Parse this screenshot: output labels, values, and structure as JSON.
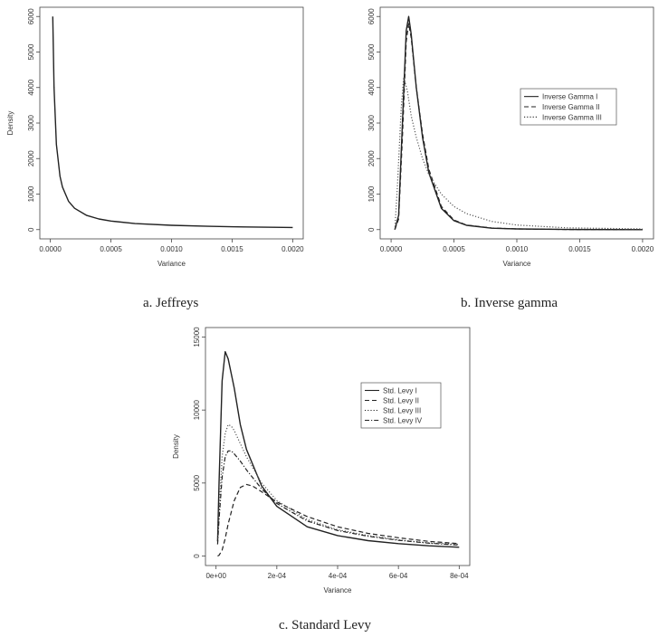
{
  "chart_data": [
    {
      "id": "a",
      "type": "line",
      "caption": "a. Jeffreys",
      "xlabel": "Variance",
      "ylabel": "Density",
      "xlim": [
        0,
        0.002
      ],
      "ylim": [
        0,
        6000
      ],
      "x_ticks": [
        "0.0000",
        "0.0005",
        "0.0010",
        "0.0015",
        "0.0020"
      ],
      "y_ticks": [
        "0",
        "1000",
        "2000",
        "3000",
        "4000",
        "5000",
        "6000"
      ],
      "series": [
        {
          "style": "solid",
          "x": [
            2e-05,
            3e-05,
            5e-05,
            8e-05,
            0.0001,
            0.00015,
            0.0002,
            0.0003,
            0.0004,
            0.0005,
            0.0007,
            0.001,
            0.0013,
            0.0016,
            0.002
          ],
          "y": [
            6000,
            4000,
            2400,
            1500,
            1200,
            800,
            600,
            400,
            300,
            240,
            170,
            120,
            92,
            75,
            60
          ]
        }
      ]
    },
    {
      "id": "b",
      "type": "line",
      "caption": "b. Inverse gamma",
      "xlabel": "Variance",
      "ylabel": "",
      "xlim": [
        0,
        0.002
      ],
      "ylim": [
        0,
        6000
      ],
      "x_ticks": [
        "0.0000",
        "0.0005",
        "0.0010",
        "0.0015",
        "0.0020"
      ],
      "y_ticks": [
        "0",
        "1000",
        "2000",
        "3000",
        "4000",
        "5000",
        "6000"
      ],
      "legend": "right",
      "series": [
        {
          "name": "Inverse Gamma I",
          "style": "solid",
          "x": [
            3e-05,
            6e-05,
            9e-05,
            0.00012,
            0.00014,
            0.00016,
            0.0002,
            0.00025,
            0.0003,
            0.0004,
            0.0005,
            0.0006,
            0.0008,
            0.001,
            0.0014,
            0.002
          ],
          "y": [
            0,
            400,
            3000,
            5600,
            6000,
            5500,
            4000,
            2600,
            1600,
            600,
            250,
            120,
            40,
            20,
            5,
            0
          ]
        },
        {
          "name": "Inverse Gamma II",
          "style": "dashed",
          "x": [
            3e-05,
            6e-05,
            9e-05,
            0.00012,
            0.00014,
            0.00016,
            0.0002,
            0.00025,
            0.0003,
            0.0004,
            0.0005,
            0.0006,
            0.0008,
            0.001,
            0.0014,
            0.002
          ],
          "y": [
            0,
            300,
            2600,
            5300,
            5800,
            5400,
            4000,
            2700,
            1700,
            650,
            270,
            130,
            45,
            20,
            5,
            0
          ]
        },
        {
          "name": "Inverse Gamma III",
          "style": "dotted",
          "x": [
            3e-05,
            5e-05,
            8e-05,
            0.0001,
            0.00013,
            0.00016,
            0.0002,
            0.00025,
            0.0003,
            0.0004,
            0.0005,
            0.0006,
            0.0008,
            0.001,
            0.0014,
            0.002
          ],
          "y": [
            0,
            1200,
            3400,
            4300,
            3900,
            3200,
            2600,
            2000,
            1550,
            1000,
            650,
            450,
            230,
            130,
            50,
            20
          ]
        }
      ]
    },
    {
      "id": "c",
      "type": "line",
      "caption": "c. Standard Levy",
      "xlabel": "Variance",
      "ylabel": "Density",
      "xlim": [
        0,
        0.0008
      ],
      "ylim": [
        0,
        15000
      ],
      "x_ticks": [
        "0e+00",
        "2e-04",
        "4e-04",
        "6e-04",
        "8e-04"
      ],
      "y_ticks": [
        "0",
        "5000",
        "10000",
        "15000"
      ],
      "legend": "top-right",
      "series": [
        {
          "name": "Std. Levy I",
          "style": "solid",
          "x": [
            5e-06,
            1e-05,
            2e-05,
            3e-05,
            4e-05,
            6e-05,
            8e-05,
            0.0001,
            0.00015,
            0.0002,
            0.0003,
            0.0004,
            0.0005,
            0.0006,
            0.0007,
            0.0008
          ],
          "y": [
            1000,
            5000,
            12000,
            14000,
            13500,
            11500,
            9000,
            7300,
            4800,
            3400,
            2000,
            1400,
            1050,
            850,
            700,
            600
          ]
        },
        {
          "name": "Std. Levy II",
          "style": "dashed",
          "x": [
            5e-06,
            1e-05,
            2e-05,
            3e-05,
            4e-05,
            6e-05,
            8e-05,
            0.0001,
            0.00012,
            0.00015,
            0.0002,
            0.0003,
            0.0004,
            0.0005,
            0.0006,
            0.0007,
            0.0008
          ],
          "y": [
            0,
            50,
            400,
            1200,
            2200,
            3800,
            4700,
            4900,
            4800,
            4400,
            3700,
            2700,
            2000,
            1550,
            1250,
            1000,
            850
          ]
        },
        {
          "name": "Std. Levy III",
          "style": "dotted",
          "x": [
            5e-06,
            1e-05,
            2e-05,
            3e-05,
            4e-05,
            5e-05,
            6e-05,
            8e-05,
            0.0001,
            0.00015,
            0.0002,
            0.0003,
            0.0004,
            0.0005,
            0.0006,
            0.0007,
            0.0008
          ],
          "y": [
            1000,
            3000,
            6800,
            8400,
            9000,
            8900,
            8600,
            7700,
            6800,
            5000,
            3800,
            2500,
            1800,
            1400,
            1100,
            900,
            800
          ]
        },
        {
          "name": "Std. Levy IV",
          "style": "dotdash",
          "x": [
            5e-06,
            1e-05,
            2e-05,
            3e-05,
            4e-05,
            5e-05,
            6e-05,
            8e-05,
            0.0001,
            0.00015,
            0.0002,
            0.0003,
            0.0004,
            0.0005,
            0.0006,
            0.0007,
            0.0008
          ],
          "y": [
            800,
            2500,
            5400,
            6800,
            7200,
            7200,
            7000,
            6500,
            5900,
            4600,
            3600,
            2400,
            1750,
            1350,
            1080,
            880,
            750
          ]
        }
      ]
    }
  ]
}
